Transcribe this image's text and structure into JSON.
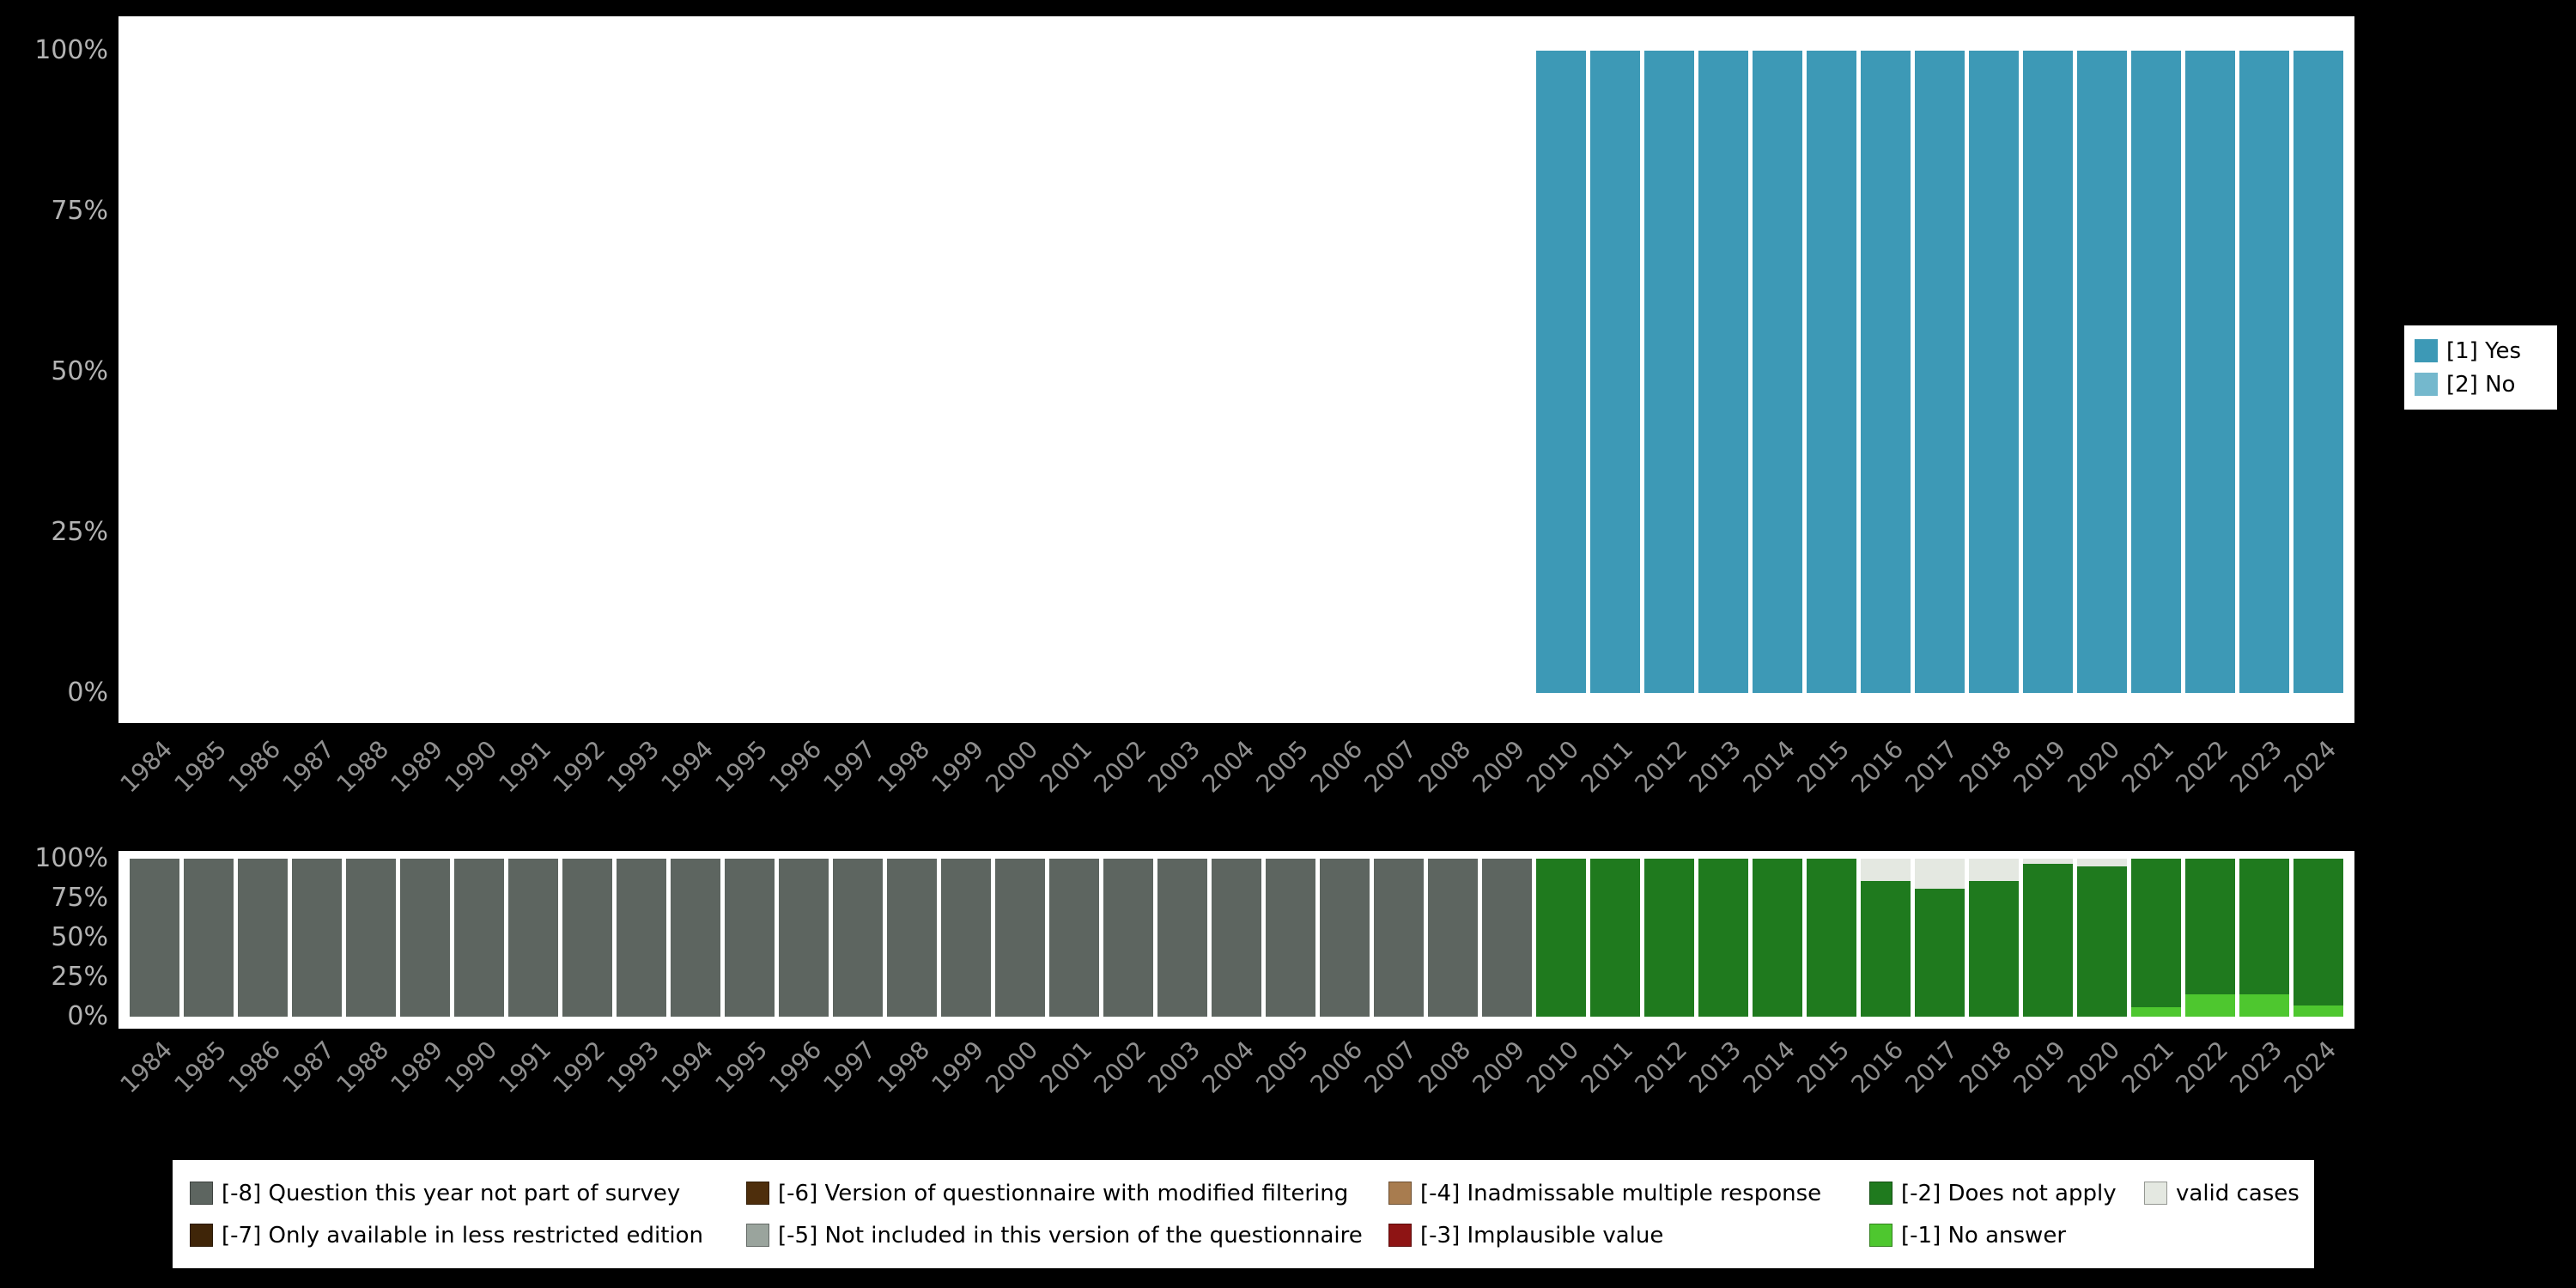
{
  "colors": {
    "page_background": "#000000",
    "panel_background": "#ffffff",
    "y_axis_text": "#b3b3b3",
    "x_axis_text": "#8f8f8f",
    "legend_text": "#000000"
  },
  "chart_data": [
    {
      "type": "bar",
      "stacked": true,
      "percent": true,
      "title": "",
      "xlabel": "",
      "ylabel": "",
      "ylim": [
        0,
        100
      ],
      "grid": false,
      "x_axis_rotation": 45,
      "legend_position": "right",
      "yticks": [
        "100%",
        "75%",
        "50%",
        "25%",
        "0%"
      ],
      "categories": [
        "1984",
        "1985",
        "1986",
        "1987",
        "1988",
        "1989",
        "1990",
        "1991",
        "1992",
        "1993",
        "1994",
        "1995",
        "1996",
        "1997",
        "1998",
        "1999",
        "2000",
        "2001",
        "2002",
        "2003",
        "2004",
        "2005",
        "2006",
        "2007",
        "2008",
        "2009",
        "2010",
        "2011",
        "2012",
        "2013",
        "2014",
        "2015",
        "2016",
        "2017",
        "2018",
        "2019",
        "2020",
        "2021",
        "2022",
        "2023",
        "2024"
      ],
      "series": [
        {
          "name": "[1] Yes",
          "color": "#3d99b6",
          "values": [
            0,
            0,
            0,
            0,
            0,
            0,
            0,
            0,
            0,
            0,
            0,
            0,
            0,
            0,
            0,
            0,
            0,
            0,
            0,
            0,
            0,
            0,
            0,
            0,
            0,
            0,
            100,
            100,
            100,
            100,
            100,
            100,
            100,
            100,
            100,
            100,
            100,
            100,
            100,
            100,
            100
          ]
        },
        {
          "name": "[2] No",
          "color": "#74b8cd",
          "values": [
            0,
            0,
            0,
            0,
            0,
            0,
            0,
            0,
            0,
            0,
            0,
            0,
            0,
            0,
            0,
            0,
            0,
            0,
            0,
            0,
            0,
            0,
            0,
            0,
            0,
            0,
            0,
            0,
            0,
            0,
            0,
            0,
            0,
            0,
            0,
            0,
            0,
            0,
            0,
            0,
            0
          ]
        }
      ],
      "legend_items": [
        {
          "label": "[1] Yes",
          "color": "#3d99b6"
        },
        {
          "label": "[2] No",
          "color": "#74b8cd"
        }
      ]
    },
    {
      "type": "bar",
      "stacked": true,
      "percent": true,
      "title": "",
      "xlabel": "",
      "ylabel": "",
      "ylim": [
        0,
        100
      ],
      "grid": false,
      "x_axis_rotation": 45,
      "legend_position": "bottom",
      "legend_columns": 5,
      "yticks": [
        "100%",
        "75%",
        "50%",
        "25%",
        "0%"
      ],
      "categories": [
        "1984",
        "1985",
        "1986",
        "1987",
        "1988",
        "1989",
        "1990",
        "1991",
        "1992",
        "1993",
        "1994",
        "1995",
        "1996",
        "1997",
        "1998",
        "1999",
        "2000",
        "2001",
        "2002",
        "2003",
        "2004",
        "2005",
        "2006",
        "2007",
        "2008",
        "2009",
        "2010",
        "2011",
        "2012",
        "2013",
        "2014",
        "2015",
        "2016",
        "2017",
        "2018",
        "2019",
        "2020",
        "2021",
        "2022",
        "2023",
        "2024"
      ],
      "series": [
        {
          "name": "valid cases",
          "color": "#e4e8e1",
          "values": [
            0,
            0,
            0,
            0,
            0,
            0,
            0,
            0,
            0,
            0,
            0,
            0,
            0,
            0,
            0,
            0,
            0,
            0,
            0,
            0,
            0,
            0,
            0,
            0,
            0,
            0,
            0,
            0,
            0,
            0,
            0,
            0,
            14,
            19,
            14,
            3,
            5,
            0,
            0,
            0,
            0
          ]
        },
        {
          "name": "[-2] Does not apply",
          "color": "#1f7a1e",
          "values": [
            0,
            0,
            0,
            0,
            0,
            0,
            0,
            0,
            0,
            0,
            0,
            0,
            0,
            0,
            0,
            0,
            0,
            0,
            0,
            0,
            0,
            0,
            0,
            0,
            0,
            0,
            100,
            100,
            100,
            100,
            100,
            100,
            86,
            81,
            86,
            97,
            95,
            94,
            86,
            86,
            93
          ]
        },
        {
          "name": "[-1] No answer",
          "color": "#4ec72f",
          "values": [
            0,
            0,
            0,
            0,
            0,
            0,
            0,
            0,
            0,
            0,
            0,
            0,
            0,
            0,
            0,
            0,
            0,
            0,
            0,
            0,
            0,
            0,
            0,
            0,
            0,
            0,
            0,
            0,
            0,
            0,
            0,
            0,
            0,
            0,
            0,
            0,
            0,
            6,
            14,
            14,
            7
          ]
        },
        {
          "name": "[-8] Question this year not part of survey",
          "color": "#5d6560",
          "values": [
            100,
            100,
            100,
            100,
            100,
            100,
            100,
            100,
            100,
            100,
            100,
            100,
            100,
            100,
            100,
            100,
            100,
            100,
            100,
            100,
            100,
            100,
            100,
            100,
            100,
            100,
            0,
            0,
            0,
            0,
            0,
            0,
            0,
            0,
            0,
            0,
            0,
            0,
            0,
            0,
            0
          ]
        }
      ],
      "legend_items": [
        {
          "label": "[-8] Question this year not part of survey",
          "color": "#5d6560"
        },
        {
          "label": "[-6] Version of questionnaire with modified filtering",
          "color": "#4e2e0c"
        },
        {
          "label": "[-4] Inadmissable multiple response",
          "color": "#a87c4f"
        },
        {
          "label": "[-2] Does not apply",
          "color": "#1f7a1e"
        },
        {
          "label": "valid cases",
          "color": "#e4e8e1"
        },
        {
          "label": "[-7] Only available in less restricted edition",
          "color": "#3f2508"
        },
        {
          "label": "[-5] Not included in this version of the questionnaire",
          "color": "#9aa49d"
        },
        {
          "label": "[-3] Implausible value",
          "color": "#8e1414"
        },
        {
          "label": "[-1] No answer",
          "color": "#4ec72f"
        }
      ]
    }
  ]
}
